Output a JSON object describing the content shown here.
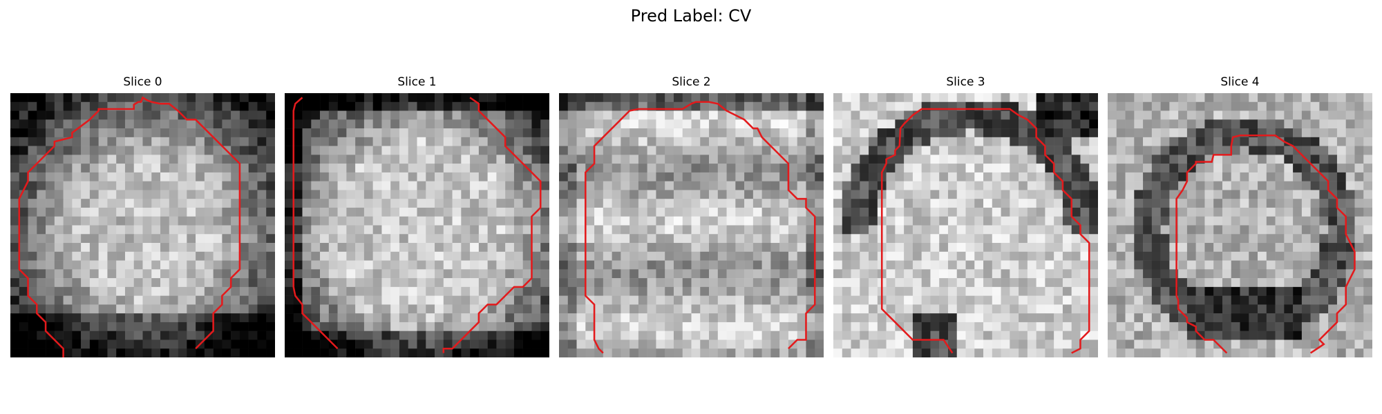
{
  "figure": {
    "title": "Pred Label: CV"
  },
  "panels": [
    {
      "title": "Slice 0",
      "seed": 11,
      "pattern": "blob-center"
    },
    {
      "title": "Slice 1",
      "seed": 23,
      "pattern": "blob-wide"
    },
    {
      "title": "Slice 2",
      "seed": 37,
      "pattern": "bands"
    },
    {
      "title": "Slice 3",
      "seed": 41,
      "pattern": "bright-rect"
    },
    {
      "title": "Slice 4",
      "seed": 53,
      "pattern": "dark-ring"
    }
  ],
  "contour_color": "#e31a1c",
  "colormap": "gray"
}
